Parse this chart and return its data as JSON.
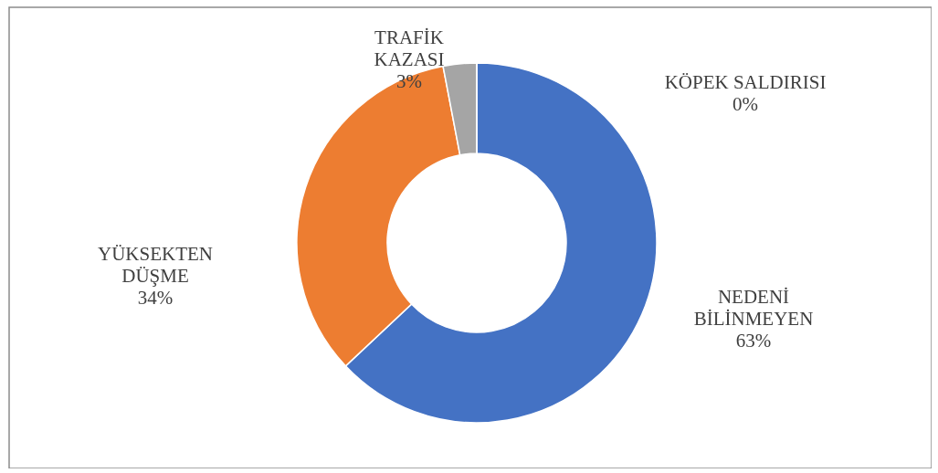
{
  "chart_data": {
    "type": "donut",
    "categories": [
      "NEDENİ BİLİNMEYEN",
      "YÜKSEKTEN DÜŞME",
      "TRAFİK KAZASI",
      "KÖPEK SALDIRISI"
    ],
    "values": [
      63,
      34,
      3,
      0
    ],
    "value_labels": [
      "63%",
      "34%",
      "3%",
      "0%"
    ],
    "colors": [
      "#4472c4",
      "#ed7d31",
      "#a5a5a5",
      "#ffc000"
    ]
  }
}
